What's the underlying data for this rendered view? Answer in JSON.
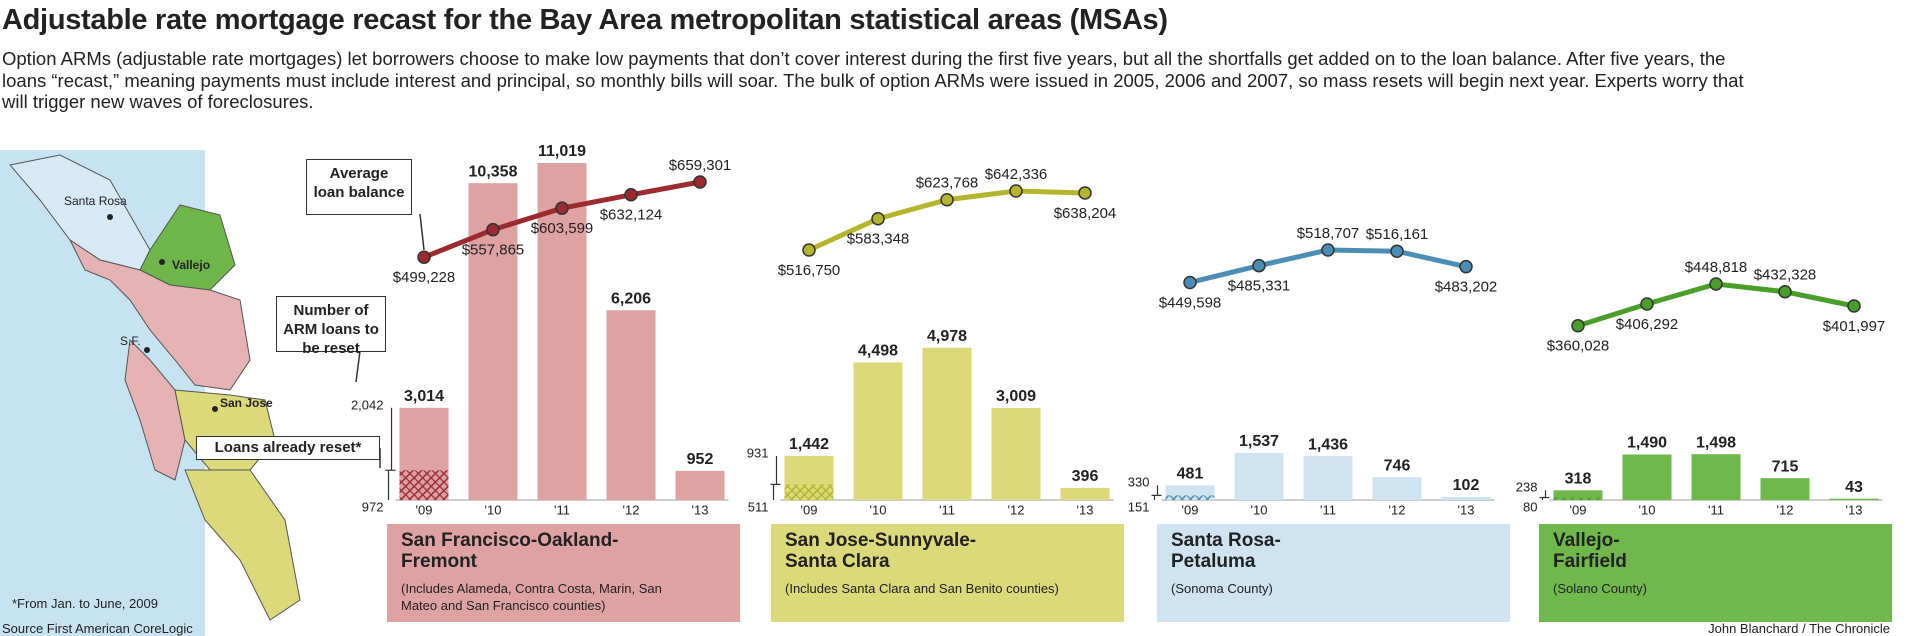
{
  "header": {
    "title": "Adjustable rate mortgage recast for the Bay Area metropolitan statistical areas (MSAs)",
    "intro": "Option ARMs (adjustable rate mortgages) let borrowers choose to make low payments that don’t cover interest during the first five years, but all the shortfalls get added on to the loan balance. After five years, the loans “recast,” meaning payments must include interest and principal, so monthly bills will soar. The bulk of option ARMs were issued in 2005, 2006 and 2007, so mass resets will begin next year. Experts worry that will trigger new waves of foreclosures."
  },
  "legend": {
    "line": "Average loan balance",
    "bars": "Number of ARM loans to be reset",
    "reset": "Loans already reset*"
  },
  "map": {
    "labels": [
      "Santa Rosa",
      "Vallejo",
      "S.F.",
      "San Jose"
    ]
  },
  "chart_data": [
    {
      "type": "combo",
      "title": "San Francisco-Oakland-Fremont",
      "subtitle": "(Includes Alameda, Contra Costa, Marin, San Mateo and San Francisco counties)",
      "categories": [
        "'09",
        "'10",
        "'11",
        "'12",
        "'13"
      ],
      "series": [
        {
          "color": "#dea2a3",
          "values": [
            3014,
            10358,
            11019,
            6206,
            952
          ],
          "value_labels": [
            "3,014",
            "10,358",
            "11,019",
            "6,206",
            "952"
          ],
          "pending": 2042,
          "pending_label": "2,042",
          "already_reset": 972
        },
        {
          "color": "#9c2b2f",
          "values": [
            499228,
            557865,
            603599,
            632124,
            659301
          ],
          "value_labels": [
            "$499,228",
            "$557,865",
            "$603,599",
            "$632,124",
            "$659,301"
          ]
        }
      ]
    },
    {
      "type": "combo",
      "title": "San Jose-Sunnyvale-Santa Clara",
      "subtitle": "(Includes Santa Clara and San Benito counties)",
      "categories": [
        "'09",
        "'10",
        "'11",
        "'12",
        "'13"
      ],
      "series": [
        {
          "color": "#dcd97a",
          "values": [
            1442,
            4498,
            4978,
            3009,
            396
          ],
          "value_labels": [
            "1,442",
            "4,498",
            "4,978",
            "3,009",
            "396"
          ],
          "pending": 931,
          "already_reset": 511
        },
        {
          "color": "#b5b52c",
          "values": [
            516750,
            583348,
            623768,
            642336,
            638204
          ],
          "value_labels": [
            "$516,750",
            "$583,348",
            "$623,768",
            "$642,336",
            "$638,204"
          ]
        }
      ]
    },
    {
      "type": "combo",
      "title": "Santa Rosa-Petaluma",
      "subtitle": "(Sonoma County)",
      "categories": [
        "'09",
        "'10",
        "'11",
        "'12",
        "'13"
      ],
      "series": [
        {
          "color": "#cfe3f0",
          "values": [
            481,
            1537,
            1436,
            746,
            102
          ],
          "value_labels": [
            "481",
            "1,537",
            "1,436",
            "746",
            "102"
          ],
          "pending": 330,
          "already_reset": 151
        },
        {
          "color": "#4b8db3",
          "values": [
            449598,
            485331,
            518707,
            516161,
            483202
          ],
          "value_labels": [
            "$449,598",
            "$485,331",
            "$518,707",
            "$516,161",
            "$483,202"
          ]
        }
      ]
    },
    {
      "type": "combo",
      "title": "Vallejo-Fairfield",
      "subtitle": "(Solano County)",
      "categories": [
        "'09",
        "'10",
        "'11",
        "'12",
        "'13"
      ],
      "series": [
        {
          "color": "#70b84c",
          "values": [
            318,
            1490,
            1498,
            715,
            43
          ],
          "value_labels": [
            "318",
            "1,490",
            "1,498",
            "715",
            "43"
          ],
          "pending": 238,
          "already_reset": 80
        },
        {
          "color": "#4a9e2a",
          "values": [
            360028,
            406292,
            448818,
            432328,
            401997
          ],
          "value_labels": [
            "$360,028",
            "$406,292",
            "$448,818",
            "$432,328",
            "$401,997"
          ]
        }
      ]
    }
  ],
  "footer": {
    "note": "*From Jan. to June, 2009",
    "source": "Source First American CoreLogic",
    "credit": "John Blanchard / The Chronicle"
  }
}
